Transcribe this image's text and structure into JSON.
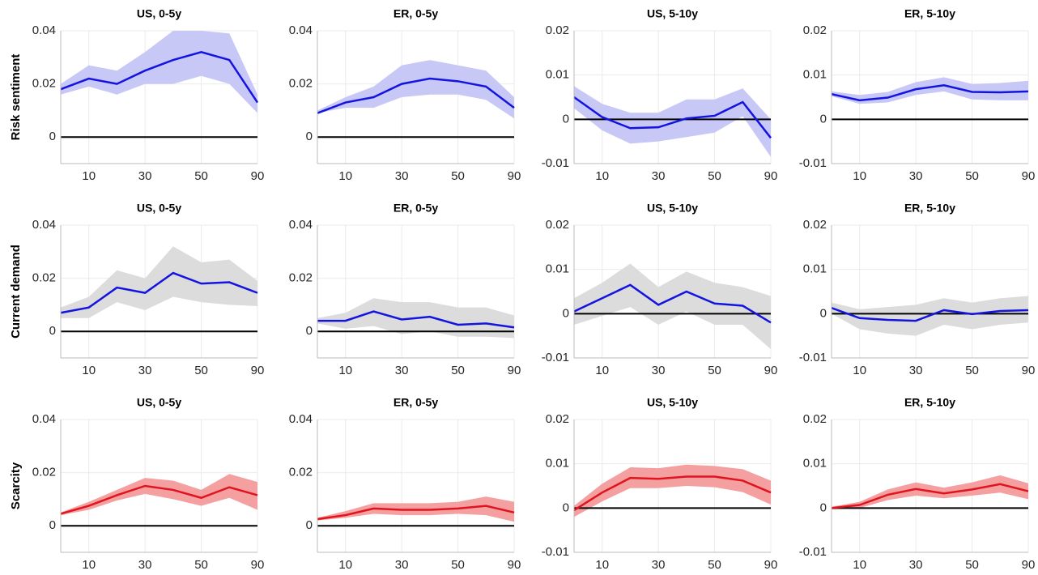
{
  "chart_data": [
    {
      "type": "line",
      "title": "US, 0-5y",
      "ylabel": "Risk sentiment",
      "categories": [
        null,
        "10",
        null,
        "30",
        null,
        "50",
        null,
        "90"
      ],
      "values": [
        0.018,
        0.022,
        0.02,
        0.025,
        0.029,
        0.032,
        0.029,
        0.013
      ],
      "lower": [
        0.016,
        0.019,
        0.016,
        0.02,
        0.02,
        0.023,
        0.02,
        0.009
      ],
      "upper": [
        0.02,
        0.027,
        0.025,
        0.032,
        0.04,
        0.04,
        0.039,
        0.016
      ],
      "color": "#1414e0",
      "band_color": "#c8c8f7",
      "ylim": [
        -0.01,
        0.04
      ],
      "yticks": [
        0,
        0.02,
        0.04
      ],
      "grid": true
    },
    {
      "type": "line",
      "title": "ER, 0-5y",
      "categories": [
        null,
        "10",
        null,
        "30",
        null,
        "50",
        null,
        "90"
      ],
      "values": [
        0.009,
        0.013,
        0.015,
        0.02,
        0.022,
        0.021,
        0.019,
        0.011
      ],
      "lower": [
        0.009,
        0.011,
        0.011,
        0.015,
        0.016,
        0.016,
        0.014,
        0.007
      ],
      "upper": [
        0.01,
        0.015,
        0.019,
        0.027,
        0.029,
        0.027,
        0.025,
        0.015
      ],
      "color": "#1414e0",
      "band_color": "#c8c8f7",
      "ylim": [
        -0.01,
        0.04
      ],
      "yticks": [
        0,
        0.02,
        0.04
      ],
      "grid": true
    },
    {
      "type": "line",
      "title": "US, 5-10y",
      "categories": [
        null,
        "10",
        null,
        "30",
        null,
        "50",
        null,
        "90"
      ],
      "values": [
        0.005,
        0.0005,
        -0.002,
        -0.0018,
        0.0002,
        0.0008,
        0.0039,
        -0.0042
      ],
      "lower": [
        0.0025,
        -0.0025,
        -0.0055,
        -0.005,
        -0.004,
        -0.003,
        0.0007,
        -0.0085
      ],
      "upper": [
        0.0075,
        0.0035,
        0.0015,
        0.0015,
        0.0045,
        0.0045,
        0.007,
        0
      ],
      "color": "#1414e0",
      "band_color": "#c8c8f7",
      "ylim": [
        -0.01,
        0.02
      ],
      "yticks": [
        -0.01,
        0,
        0.01,
        0.02
      ],
      "grid": true
    },
    {
      "type": "line",
      "title": "ER, 5-10y",
      "categories": [
        null,
        "10",
        null,
        "30",
        null,
        "50",
        null,
        "90"
      ],
      "values": [
        0.0057,
        0.0043,
        0.0049,
        0.0068,
        0.0077,
        0.0062,
        0.0061,
        0.0063
      ],
      "lower": [
        0.0052,
        0.0035,
        0.0038,
        0.0055,
        0.0063,
        0.0045,
        0.0043,
        0.0043
      ],
      "upper": [
        0.0063,
        0.0055,
        0.0062,
        0.0084,
        0.0095,
        0.008,
        0.0082,
        0.0087
      ],
      "color": "#1414e0",
      "band_color": "#c8c8f7",
      "ylim": [
        -0.01,
        0.02
      ],
      "yticks": [
        -0.01,
        0,
        0.01,
        0.02
      ],
      "grid": true
    },
    {
      "type": "line",
      "title": "US, 0-5y",
      "ylabel": "Current demand",
      "categories": [
        null,
        "10",
        null,
        "30",
        null,
        "50",
        null,
        "90"
      ],
      "values": [
        0.007,
        0.009,
        0.0165,
        0.0145,
        0.022,
        0.018,
        0.0185,
        0.0145
      ],
      "lower": [
        0.005,
        0.005,
        0.011,
        0.008,
        0.013,
        0.011,
        0.01,
        0.0095
      ],
      "upper": [
        0.009,
        0.013,
        0.023,
        0.02,
        0.032,
        0.026,
        0.027,
        0.019
      ],
      "color": "#1414e0",
      "band_color": "#dcdcdc",
      "ylim": [
        -0.01,
        0.04
      ],
      "yticks": [
        0,
        0.02,
        0.04
      ],
      "grid": true
    },
    {
      "type": "line",
      "title": "ER, 0-5y",
      "categories": [
        null,
        "10",
        null,
        "30",
        null,
        "50",
        null,
        "90"
      ],
      "values": [
        0.004,
        0.004,
        0.0075,
        0.0045,
        0.0055,
        0.0025,
        0.003,
        0.0015
      ],
      "lower": [
        0.003,
        0.001,
        0.002,
        -0.001,
        0,
        -0.002,
        -0.002,
        -0.0025
      ],
      "upper": [
        0.005,
        0.007,
        0.0125,
        0.011,
        0.011,
        0.009,
        0.009,
        0.006
      ],
      "color": "#1414e0",
      "band_color": "#dcdcdc",
      "ylim": [
        -0.01,
        0.04
      ],
      "yticks": [
        0,
        0.02,
        0.04
      ],
      "grid": true
    },
    {
      "type": "line",
      "title": "US, 5-10y",
      "categories": [
        null,
        "10",
        null,
        "30",
        null,
        "50",
        null,
        "90"
      ],
      "values": [
        0.0005,
        0.0035,
        0.0065,
        0.002,
        0.005,
        0.0023,
        0.0018,
        -0.002
      ],
      "lower": [
        -0.0025,
        -0.0005,
        0.0015,
        -0.0025,
        0.0005,
        -0.0025,
        -0.0025,
        -0.008
      ],
      "upper": [
        0.0035,
        0.007,
        0.0113,
        0.006,
        0.0095,
        0.007,
        0.006,
        0.004
      ],
      "color": "#1414e0",
      "band_color": "#dcdcdc",
      "ylim": [
        -0.01,
        0.02
      ],
      "yticks": [
        -0.01,
        0,
        0.01,
        0.02
      ],
      "grid": true
    },
    {
      "type": "line",
      "title": "ER, 5-10y",
      "categories": [
        null,
        "10",
        null,
        "30",
        null,
        "50",
        null,
        "90"
      ],
      "values": [
        0.0013,
        -0.001,
        -0.0014,
        -0.0016,
        0.0008,
        -0.0001,
        0.0006,
        0.0008
      ],
      "lower": [
        0,
        -0.0035,
        -0.0045,
        -0.005,
        -0.0025,
        -0.0035,
        -0.0025,
        -0.002
      ],
      "upper": [
        0.0025,
        0.001,
        0.0015,
        0.002,
        0.0035,
        0.0025,
        0.0035,
        0.004
      ],
      "color": "#1414e0",
      "band_color": "#dcdcdc",
      "ylim": [
        -0.01,
        0.02
      ],
      "yticks": [
        -0.01,
        0,
        0.01,
        0.02
      ],
      "grid": true
    },
    {
      "type": "line",
      "title": "US, 0-5y",
      "ylabel": "Scarcity",
      "categories": [
        null,
        "10",
        null,
        "30",
        null,
        "50",
        null,
        "90"
      ],
      "values": [
        0.0045,
        0.0075,
        0.0115,
        0.015,
        0.0135,
        0.0105,
        0.0145,
        0.0115
      ],
      "lower": [
        0.004,
        0.006,
        0.0095,
        0.012,
        0.01,
        0.0075,
        0.0105,
        0.006
      ],
      "upper": [
        0.005,
        0.009,
        0.0135,
        0.018,
        0.017,
        0.0135,
        0.0195,
        0.0165
      ],
      "color": "#e0141e",
      "band_color": "#f4a0a0",
      "ylim": [
        -0.01,
        0.04
      ],
      "yticks": [
        0,
        0.02,
        0.04
      ],
      "grid": true
    },
    {
      "type": "line",
      "title": "ER, 0-5y",
      "categories": [
        null,
        "10",
        null,
        "30",
        null,
        "50",
        null,
        "90"
      ],
      "values": [
        0.0025,
        0.004,
        0.0065,
        0.006,
        0.006,
        0.0065,
        0.0075,
        0.005
      ],
      "lower": [
        0.002,
        0.003,
        0.0045,
        0.004,
        0.004,
        0.0045,
        0.004,
        0.0015
      ],
      "upper": [
        0.003,
        0.0055,
        0.0085,
        0.0085,
        0.0085,
        0.009,
        0.011,
        0.009
      ],
      "color": "#e0141e",
      "band_color": "#f4a0a0",
      "ylim": [
        -0.01,
        0.04
      ],
      "yticks": [
        0,
        0.02,
        0.04
      ],
      "grid": true
    },
    {
      "type": "line",
      "title": "US, 5-10y",
      "categories": [
        null,
        "10",
        null,
        "30",
        null,
        "50",
        null,
        "90"
      ],
      "values": [
        -0.0005,
        0.0035,
        0.0068,
        0.0066,
        0.0071,
        0.0071,
        0.0062,
        0.0035
      ],
      "lower": [
        -0.002,
        0.0015,
        0.0045,
        0.0045,
        0.005,
        0.0047,
        0.0036,
        0.0008
      ],
      "upper": [
        0.0005,
        0.0055,
        0.0092,
        0.009,
        0.0098,
        0.0095,
        0.0088,
        0.0062
      ],
      "color": "#e0141e",
      "band_color": "#f4a0a0",
      "ylim": [
        -0.01,
        0.02
      ],
      "yticks": [
        -0.01,
        0,
        0.01,
        0.02
      ],
      "grid": true
    },
    {
      "type": "line",
      "title": "ER, 5-10y",
      "categories": [
        null,
        "10",
        null,
        "30",
        null,
        "50",
        null,
        "90"
      ],
      "values": [
        0,
        0.0007,
        0.003,
        0.0043,
        0.0033,
        0.0042,
        0.0054,
        0.0038
      ],
      "lower": [
        -0.0003,
        0,
        0.0018,
        0.0028,
        0.0022,
        0.0028,
        0.0035,
        0.002
      ],
      "upper": [
        0.0003,
        0.0014,
        0.0042,
        0.0058,
        0.0046,
        0.0058,
        0.0074,
        0.0056
      ],
      "color": "#e0141e",
      "band_color": "#f4a0a0",
      "ylim": [
        -0.01,
        0.02
      ],
      "yticks": [
        -0.01,
        0,
        0.01,
        0.02
      ],
      "grid": true
    }
  ]
}
